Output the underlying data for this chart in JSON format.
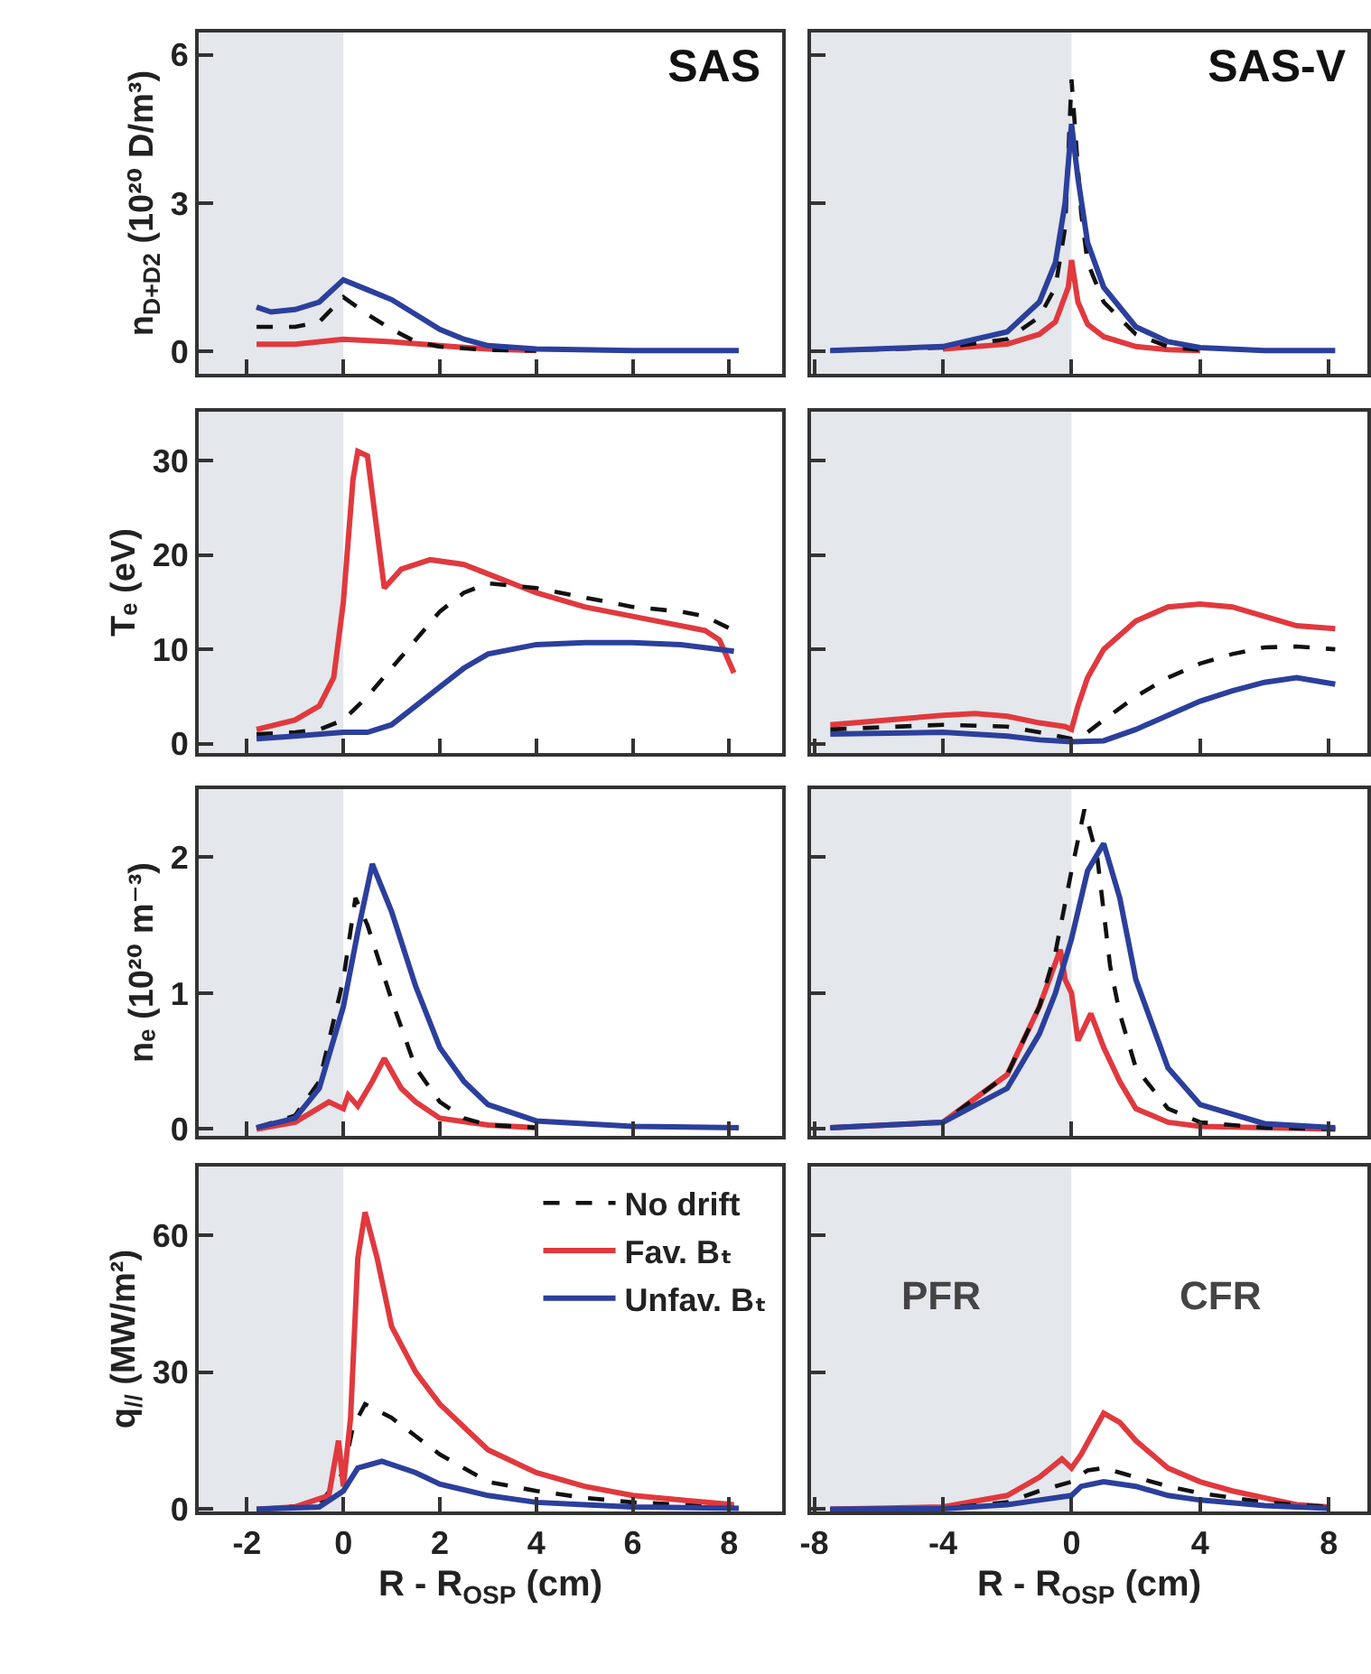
{
  "chart_data": [
    {
      "type": "line",
      "title": "SAS",
      "ylabel": "n$_{D+D2}$ (10²⁰ D/m³)",
      "xlim": [
        -3,
        9.1
      ],
      "ylim": [
        -0.45,
        6.45
      ],
      "xticks": [
        -2,
        0,
        2,
        4,
        6,
        8
      ],
      "yticks": [
        0,
        3,
        6
      ],
      "tick_labels": "y",
      "bands": [
        {
          "axis": "x",
          "from": -3,
          "to": 0,
          "color": "#e4e7eb"
        }
      ],
      "series": [
        {
          "color": "#e0393e",
          "line_style": "solid",
          "x": [
            -1.8,
            -1,
            0,
            1,
            2,
            3,
            4
          ],
          "values": [
            0.15,
            0.15,
            0.25,
            0.2,
            0.12,
            0.05,
            0.02
          ]
        },
        {
          "color": "#111111",
          "line_style": "dashed",
          "x": [
            -1.8,
            -1,
            -0.5,
            0,
            0.5,
            1,
            1.5,
            2,
            3,
            4
          ],
          "values": [
            0.5,
            0.5,
            0.6,
            1.1,
            0.75,
            0.45,
            0.2,
            0.1,
            0.03,
            0.02
          ]
        },
        {
          "color": "#2b3f9c",
          "line_style": "solid",
          "x": [
            -1.8,
            -1.5,
            -1,
            -0.5,
            0,
            0.5,
            1,
            1.5,
            2,
            2.5,
            3,
            4,
            6,
            8.2
          ],
          "values": [
            0.9,
            0.8,
            0.85,
            1.0,
            1.45,
            1.25,
            1.05,
            0.75,
            0.45,
            0.25,
            0.12,
            0.05,
            0.02,
            0.02
          ]
        }
      ]
    },
    {
      "type": "line",
      "title": "SAS-V",
      "xlim": [
        -8.1,
        9.2
      ],
      "ylim": [
        -0.45,
        6.45
      ],
      "xticks": [
        -8,
        -4,
        0,
        4,
        8
      ],
      "yticks": [
        0,
        3,
        6
      ],
      "tick_labels": false,
      "bands": [
        {
          "axis": "x",
          "from": -8.1,
          "to": 0,
          "color": "#e4e7eb"
        }
      ],
      "series": [
        {
          "color": "#e0393e",
          "line_style": "solid",
          "x": [
            -4,
            -2,
            -1,
            -0.5,
            -0.1,
            0,
            0.2,
            0.5,
            1,
            2,
            3,
            4
          ],
          "values": [
            0.05,
            0.15,
            0.35,
            0.6,
            1.3,
            1.85,
            1.0,
            0.55,
            0.3,
            0.1,
            0.04,
            0.02
          ]
        },
        {
          "color": "#111111",
          "line_style": "dashed",
          "x": [
            -7.5,
            -4,
            -2,
            -1,
            -0.5,
            -0.2,
            0,
            0.3,
            0.5,
            1,
            2,
            3,
            4
          ],
          "values": [
            0.02,
            0.08,
            0.25,
            0.7,
            1.3,
            2.5,
            5.5,
            2.8,
            1.8,
            1.0,
            0.35,
            0.1,
            0.03
          ]
        },
        {
          "color": "#2b3f9c",
          "line_style": "solid",
          "x": [
            -7.5,
            -4,
            -2,
            -1,
            -0.5,
            -0.2,
            0,
            0.2,
            0.5,
            1,
            2,
            3,
            4,
            6,
            8.2
          ],
          "values": [
            0.02,
            0.1,
            0.4,
            1.0,
            1.8,
            3.0,
            4.6,
            3.5,
            2.2,
            1.3,
            0.5,
            0.2,
            0.08,
            0.02,
            0.02
          ]
        }
      ]
    },
    {
      "type": "line",
      "ylabel": "Tₑ (eV)",
      "xlim": [
        -3,
        9.1
      ],
      "ylim": [
        -1,
        35.2
      ],
      "xticks": [
        -2,
        0,
        2,
        4,
        6,
        8
      ],
      "yticks": [
        0,
        10,
        20,
        30
      ],
      "tick_labels": "y",
      "bands": [
        {
          "axis": "x",
          "from": -3,
          "to": 0,
          "color": "#e4e7eb"
        }
      ],
      "series": [
        {
          "color": "#e0393e",
          "line_style": "solid",
          "x": [
            -1.8,
            -1,
            -0.5,
            -0.2,
            0,
            0.2,
            0.3,
            0.5,
            0.85,
            1.2,
            1.8,
            2.5,
            3,
            4,
            5,
            6,
            7.5,
            7.8,
            8.1
          ],
          "values": [
            1.5,
            2.5,
            4,
            7,
            15,
            28,
            31,
            30.5,
            16.5,
            18.5,
            19.5,
            19,
            18,
            16,
            14.5,
            13.5,
            12,
            11,
            7.5
          ]
        },
        {
          "color": "#111111",
          "line_style": "dashed",
          "x": [
            -1.8,
            -1,
            -0.5,
            0,
            0.5,
            1,
            1.5,
            2,
            2.5,
            3,
            4,
            5,
            6,
            7,
            7.5,
            8.1
          ],
          "values": [
            1,
            1.2,
            1.5,
            2.5,
            5,
            8,
            11,
            14,
            16,
            17,
            16.5,
            15.5,
            14.5,
            14,
            13.5,
            12
          ]
        },
        {
          "color": "#2b3f9c",
          "line_style": "solid",
          "x": [
            -1.8,
            -1,
            0,
            0.5,
            1,
            1.5,
            2,
            2.5,
            3,
            4,
            5,
            6,
            7,
            8.1
          ],
          "values": [
            0.5,
            0.8,
            1.2,
            1.2,
            2,
            4,
            6,
            8,
            9.5,
            10.5,
            10.7,
            10.7,
            10.5,
            9.8
          ]
        }
      ]
    },
    {
      "type": "line",
      "xlim": [
        -8.1,
        9.2
      ],
      "ylim": [
        -1,
        35.2
      ],
      "xticks": [
        -8,
        -4,
        0,
        4,
        8
      ],
      "yticks": [
        0,
        10,
        20,
        30
      ],
      "tick_labels": false,
      "bands": [
        {
          "axis": "x",
          "from": -8.1,
          "to": 0,
          "color": "#e4e7eb"
        }
      ],
      "series": [
        {
          "color": "#e0393e",
          "line_style": "solid",
          "x": [
            -7.5,
            -4,
            -3,
            -2,
            -1,
            -0.2,
            0,
            0.2,
            0.5,
            1,
            2,
            3,
            4,
            5,
            6,
            7,
            8.2
          ],
          "values": [
            2,
            3,
            3.2,
            2.9,
            2.2,
            1.8,
            1.5,
            4,
            7,
            10,
            13,
            14.5,
            14.8,
            14.5,
            13.5,
            12.5,
            12.2
          ]
        },
        {
          "color": "#111111",
          "line_style": "dashed",
          "x": [
            -7.5,
            -4,
            -2,
            -1,
            0,
            0.5,
            1,
            2,
            3,
            4,
            5,
            6,
            7,
            8.2
          ],
          "values": [
            1.5,
            2,
            1.8,
            1.2,
            0.5,
            1.2,
            2.5,
            5,
            7,
            8.5,
            9.5,
            10.2,
            10.3,
            10
          ]
        },
        {
          "color": "#2b3f9c",
          "line_style": "solid",
          "x": [
            -7.5,
            -4,
            -2,
            -1,
            0,
            1,
            2,
            3,
            4,
            5,
            6,
            7,
            8.2
          ],
          "values": [
            1,
            1.2,
            0.8,
            0.4,
            0.2,
            0.3,
            1.5,
            3,
            4.5,
            5.6,
            6.5,
            7,
            6.3
          ]
        }
      ]
    },
    {
      "type": "line",
      "ylabel": "nₑ (10²⁰ m⁻³)",
      "xlim": [
        -3,
        9.1
      ],
      "ylim": [
        -0.05,
        2.5
      ],
      "xticks": [
        -2,
        0,
        2,
        4,
        6,
        8
      ],
      "yticks": [
        0,
        1,
        2
      ],
      "tick_labels": "y",
      "bands": [
        {
          "axis": "x",
          "from": -3,
          "to": 0,
          "color": "#e4e7eb"
        }
      ],
      "series": [
        {
          "color": "#e0393e",
          "line_style": "solid",
          "x": [
            -1.8,
            -1,
            -0.3,
            0,
            0.1,
            0.3,
            0.6,
            0.85,
            1.2,
            1.5,
            2,
            3,
            4
          ],
          "values": [
            0,
            0.05,
            0.2,
            0.15,
            0.25,
            0.17,
            0.35,
            0.52,
            0.3,
            0.2,
            0.08,
            0.03,
            0.01
          ]
        },
        {
          "color": "#111111",
          "line_style": "dashed",
          "x": [
            -1.8,
            -1,
            -0.5,
            0,
            0.25,
            0.5,
            1,
            1.5,
            2,
            2.5,
            3,
            4
          ],
          "values": [
            0.01,
            0.1,
            0.35,
            1.1,
            1.7,
            1.5,
            0.95,
            0.45,
            0.2,
            0.08,
            0.03,
            0.01
          ]
        },
        {
          "color": "#2b3f9c",
          "line_style": "solid",
          "x": [
            -1.8,
            -1,
            -0.5,
            0,
            0.3,
            0.6,
            1,
            1.5,
            2,
            2.5,
            3,
            4,
            6,
            8.2
          ],
          "values": [
            0.01,
            0.08,
            0.3,
            0.9,
            1.45,
            1.95,
            1.6,
            1.05,
            0.6,
            0.35,
            0.18,
            0.06,
            0.02,
            0.01
          ]
        }
      ]
    },
    {
      "type": "line",
      "xlim": [
        -8.1,
        9.2
      ],
      "ylim": [
        -0.05,
        2.5
      ],
      "xticks": [
        -8,
        -4,
        0,
        4,
        8
      ],
      "yticks": [
        0,
        1,
        2
      ],
      "tick_labels": false,
      "bands": [
        {
          "axis": "x",
          "from": -8.1,
          "to": 0,
          "color": "#e4e7eb"
        }
      ],
      "series": [
        {
          "color": "#e0393e",
          "line_style": "solid",
          "x": [
            -7.5,
            -4,
            -2,
            -1,
            -0.35,
            -0.2,
            0,
            0.2,
            0.6,
            1,
            1.5,
            2,
            3,
            4,
            8.2
          ],
          "values": [
            0.01,
            0.05,
            0.4,
            0.9,
            1.32,
            1.1,
            1.0,
            0.65,
            0.85,
            0.6,
            0.35,
            0.15,
            0.05,
            0.02,
            0
          ]
        },
        {
          "color": "#111111",
          "line_style": "dashed",
          "x": [
            -7.5,
            -4,
            -2,
            -1,
            -0.5,
            0,
            0.4,
            0.8,
            1.2,
            1.5,
            2,
            3,
            4,
            6,
            8.2
          ],
          "values": [
            0.01,
            0.05,
            0.4,
            0.9,
            1.3,
            1.9,
            2.35,
            2.0,
            1.2,
            0.85,
            0.45,
            0.15,
            0.05,
            0.01,
            0
          ]
        },
        {
          "color": "#2b3f9c",
          "line_style": "solid",
          "x": [
            -7.5,
            -4,
            -2,
            -1,
            -0.5,
            0,
            0.5,
            1,
            1.5,
            2,
            3,
            4,
            6,
            8.2
          ],
          "values": [
            0.01,
            0.05,
            0.3,
            0.7,
            1.0,
            1.4,
            1.9,
            2.1,
            1.7,
            1.1,
            0.45,
            0.18,
            0.04,
            0.01
          ]
        }
      ]
    },
    {
      "type": "line",
      "ylabel": "q$_{//}$ (MW/m²)",
      "xlabel": "R - R$_{OSP}$ (cm)",
      "xlim": [
        -3,
        9.1
      ],
      "ylim": [
        -0.5,
        75
      ],
      "xticks": [
        -2,
        0,
        2,
        4,
        6,
        8
      ],
      "yticks": [
        0,
        30,
        60
      ],
      "legend": "top right",
      "bands": [
        {
          "axis": "x",
          "from": -3,
          "to": 0,
          "color": "#e4e7eb"
        }
      ],
      "series": [
        {
          "name": "No drift",
          "color": "#111111",
          "line_style": "dashed",
          "x": [
            -1.8,
            -0.5,
            0,
            0.2,
            0.45,
            1,
            1.5,
            2,
            3,
            4,
            5,
            6,
            8.1
          ],
          "values": [
            0,
            1,
            8,
            18,
            23,
            20,
            16,
            12,
            6,
            4,
            2.5,
            1.5,
            0.5
          ]
        },
        {
          "name": "Fav. Bₜ",
          "color": "#e0393e",
          "line_style": "solid",
          "x": [
            -1.8,
            -1,
            -0.3,
            -0.1,
            0,
            0.15,
            0.3,
            0.45,
            0.7,
            1,
            1.5,
            2,
            3,
            4,
            5,
            6,
            7,
            8.1
          ],
          "values": [
            0,
            0.5,
            3,
            15,
            5,
            20,
            55,
            65,
            55,
            40,
            30,
            23,
            13,
            8,
            5,
            3,
            2,
            1
          ]
        },
        {
          "name": "Unfav. Bₜ",
          "color": "#2b3f9c",
          "line_style": "solid",
          "x": [
            -1.8,
            -0.5,
            0,
            0.3,
            0.8,
            1.5,
            2,
            3,
            4,
            5,
            6,
            8.2
          ],
          "values": [
            0,
            0.5,
            4,
            9,
            10.5,
            8,
            5.5,
            3,
            1.5,
            1,
            0.5,
            0.2
          ]
        }
      ]
    },
    {
      "type": "line",
      "xlabel": "R - R$_{OSP}$ (cm)",
      "xlim": [
        -8.1,
        9.2
      ],
      "ylim": [
        -0.5,
        75
      ],
      "xticks": [
        -8,
        -4,
        0,
        4,
        8
      ],
      "yticks": [
        0,
        30,
        60
      ],
      "tick_labels": "x",
      "bands": [
        {
          "axis": "x",
          "from": -8.1,
          "to": 0,
          "color": "#e4e7eb",
          "label": "PFR"
        },
        {
          "axis": "x",
          "from": 0,
          "to": 9.2,
          "color": "#ffffff",
          "label": "CFR"
        }
      ],
      "series": [
        {
          "color": "#e0393e",
          "line_style": "solid",
          "x": [
            -7.5,
            -4,
            -2,
            -1,
            -0.3,
            0,
            0.3,
            1,
            1.5,
            2,
            3,
            4,
            5,
            6,
            7,
            8
          ],
          "values": [
            0,
            0.5,
            3,
            7,
            11,
            9,
            12,
            21,
            19,
            15,
            9,
            6,
            4,
            2.5,
            1,
            0.5
          ]
        },
        {
          "color": "#111111",
          "line_style": "dashed",
          "x": [
            -7.5,
            -4,
            -2,
            -1,
            0,
            0.5,
            1,
            2,
            3,
            4,
            6,
            8
          ],
          "values": [
            0,
            0.2,
            1.5,
            4,
            6,
            8.5,
            9,
            7,
            5,
            3.5,
            1.5,
            0.5
          ]
        },
        {
          "color": "#2b3f9c",
          "line_style": "solid",
          "x": [
            -7.5,
            -4,
            -2,
            -1,
            0,
            0.3,
            1,
            2,
            3,
            4,
            6,
            8
          ],
          "values": [
            0,
            0.1,
            1,
            2,
            3,
            5,
            6,
            5,
            3,
            2,
            0.8,
            0.2
          ]
        }
      ]
    }
  ]
}
